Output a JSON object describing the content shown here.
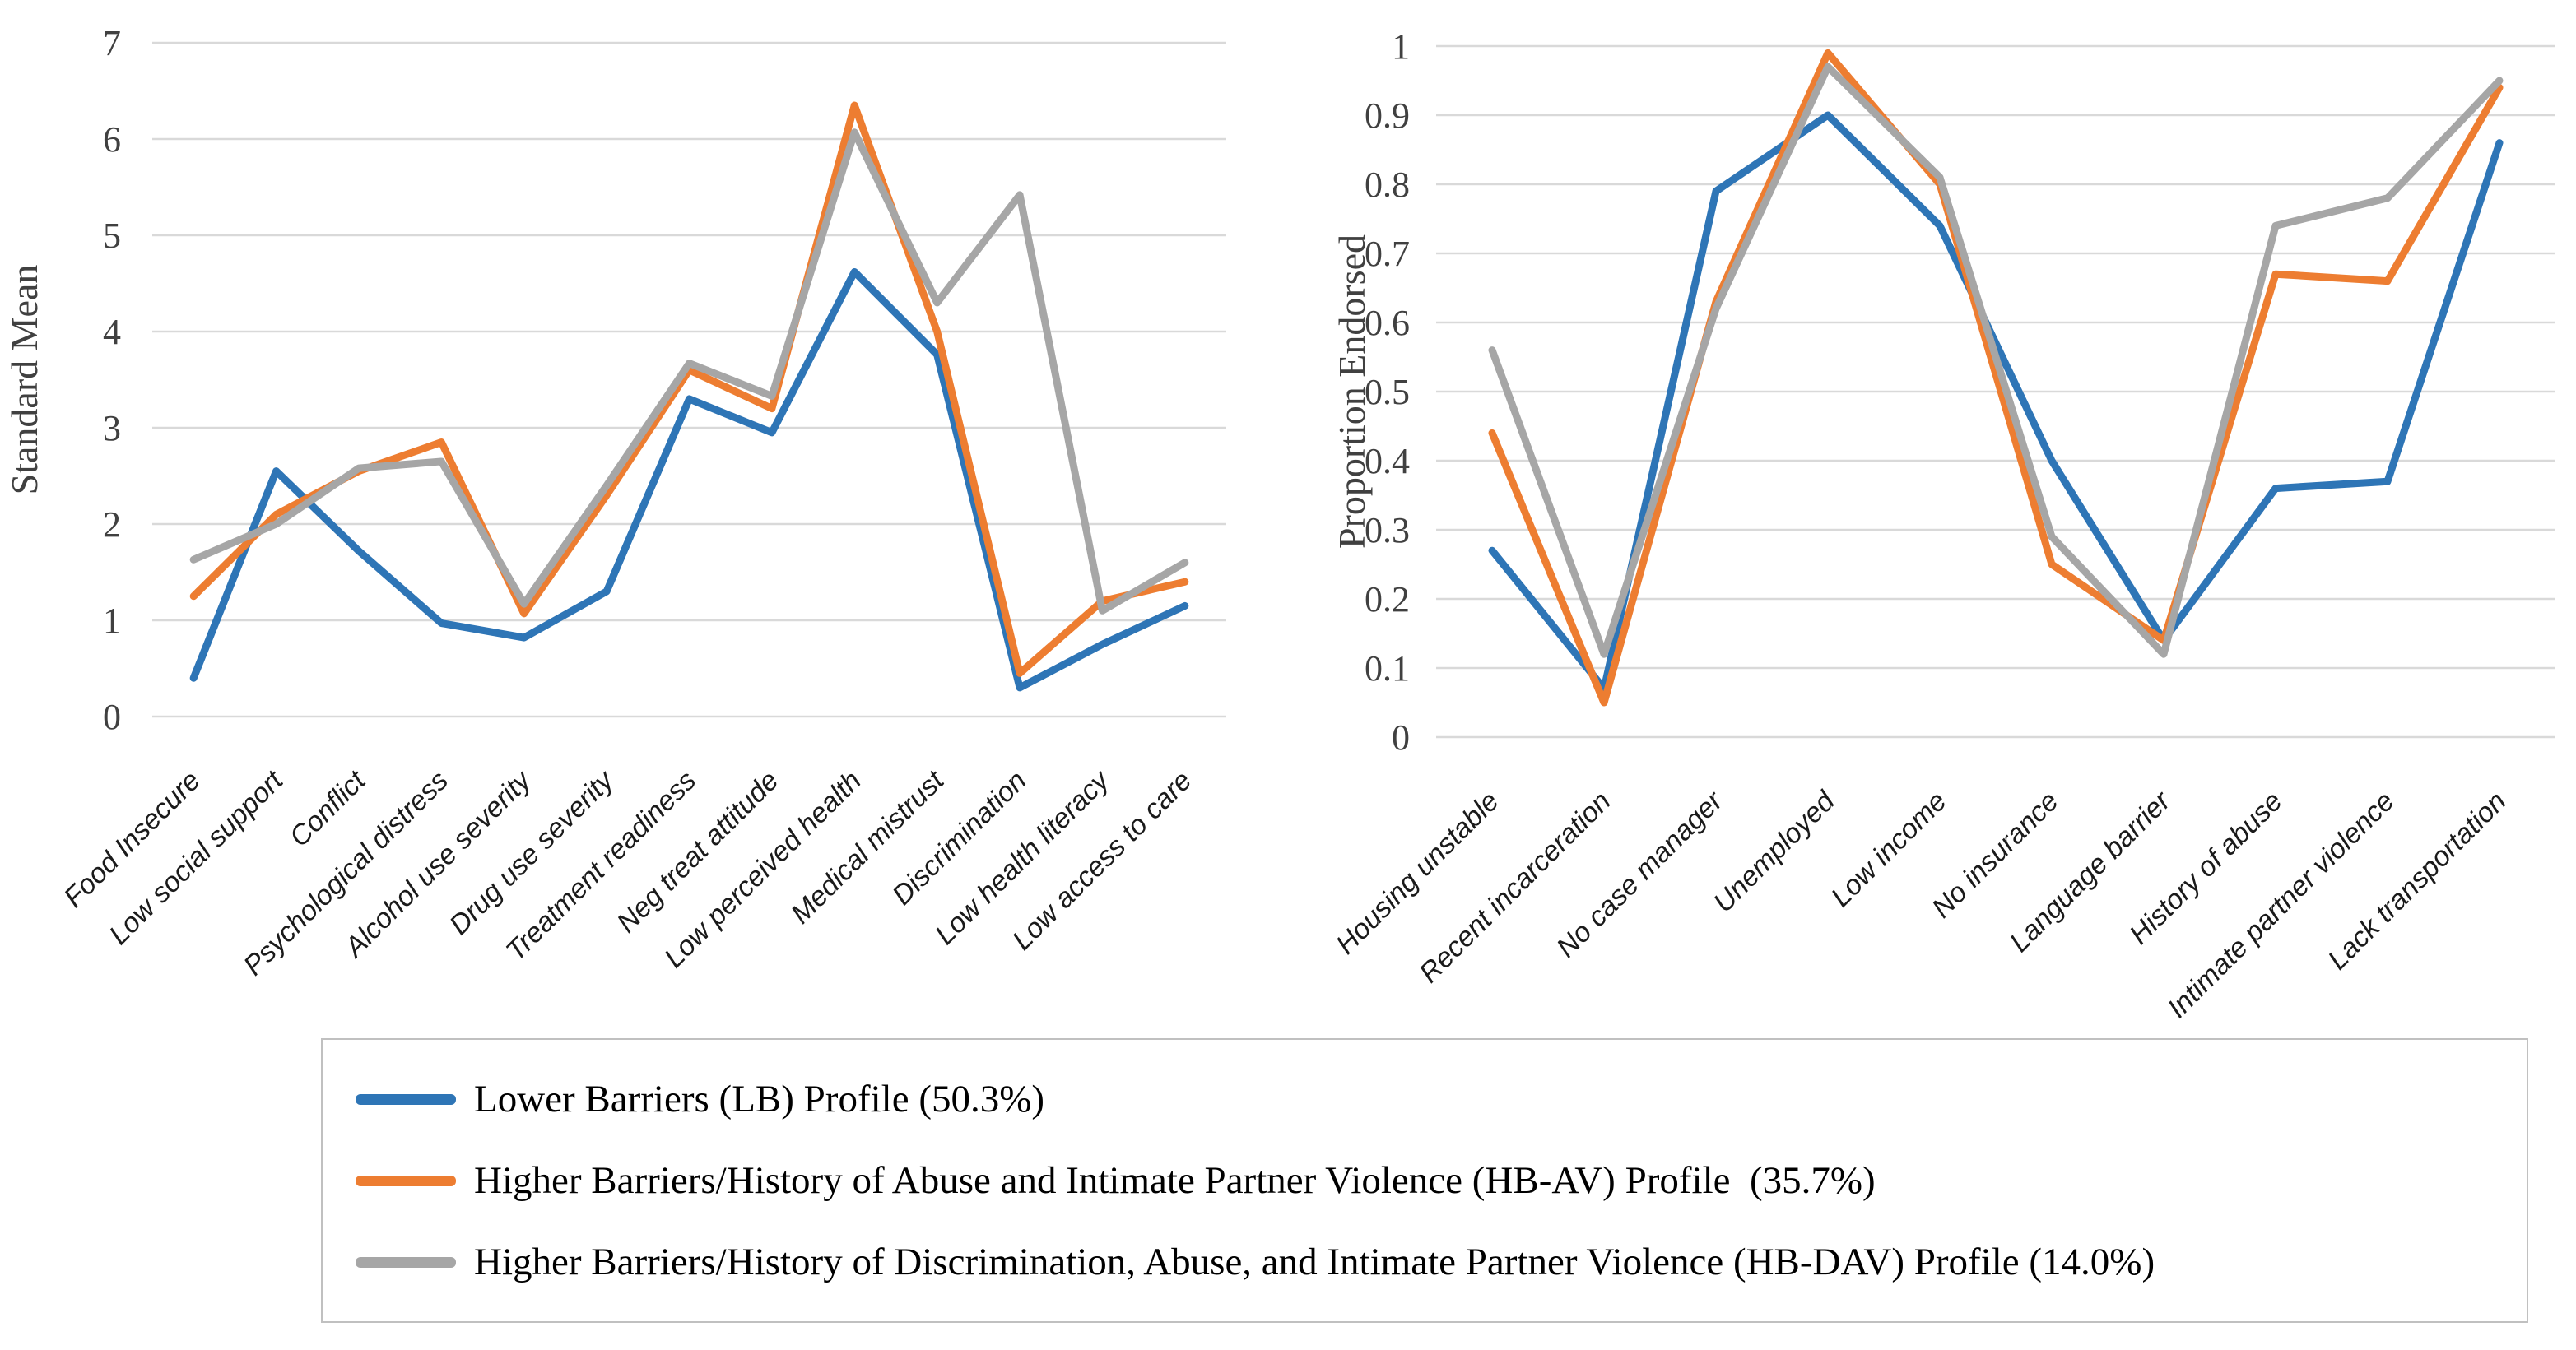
{
  "page": {
    "background": "#FFFFFF"
  },
  "colors": {
    "lb": "#2E75B6",
    "hbav": "#ED7D31",
    "hbdav": "#A6A6A6",
    "gridline": "#D9D9D9",
    "tick_label": "#404040",
    "axis_title": "#404040",
    "category_label": "#1A1A1A",
    "legend_border": "#C0C0C0"
  },
  "legend": {
    "items": [
      {
        "key": "lb",
        "label": "Lower Barriers (LB) Profile (50.3%)"
      },
      {
        "key": "hbav",
        "label": "Higher Barriers/History of Abuse and Intimate Partner Violence (HB-AV) Profile  (35.7%)"
      },
      {
        "key": "hbdav",
        "label": "Higher Barriers/History of Discrimination, Abuse, and Intimate Partner Violence (HB-DAV) Profile (14.0%)"
      }
    ]
  },
  "chart_data": [
    {
      "type": "line",
      "title": "",
      "xlabel": "",
      "ylabel": "Standard Mean",
      "ylim": [
        0,
        7
      ],
      "ytick_step": 1,
      "grid": true,
      "legend_position": "bottom-shared-box",
      "categories": [
        "Food Insecure",
        "Low social support",
        "Conflict",
        "Psychological distress",
        "Alcohol use severity",
        "Drug use severity",
        "Treatment readiness",
        "Neg treat attitude",
        "Low perceived health",
        "Medical mistrust",
        "Discrimination",
        "Low health literacy",
        "Low access to care"
      ],
      "series": [
        {
          "key": "lb",
          "name": "Lower Barriers (LB) Profile",
          "values": [
            0.4,
            2.55,
            1.72,
            0.97,
            0.82,
            1.3,
            3.3,
            2.95,
            4.62,
            3.76,
            0.3,
            0.75,
            1.15
          ]
        },
        {
          "key": "hbav",
          "name": "Higher Barriers/History of Abuse and Intimate Partner Violence (HB-AV) Profile",
          "values": [
            1.25,
            2.1,
            2.55,
            2.85,
            1.07,
            2.3,
            3.6,
            3.2,
            6.35,
            4.0,
            0.45,
            1.2,
            1.4
          ]
        },
        {
          "key": "hbdav",
          "name": "Higher Barriers/History of Discrimination, Abuse, and Intimate Partner Violence (HB-DAV) Profile",
          "values": [
            1.63,
            2.0,
            2.58,
            2.65,
            1.17,
            2.4,
            3.67,
            3.33,
            6.07,
            4.3,
            5.42,
            1.1,
            1.6
          ]
        }
      ]
    },
    {
      "type": "line",
      "title": "",
      "xlabel": "",
      "ylabel": "Proportion Endorsed",
      "ylim": [
        0,
        1
      ],
      "ytick_step": 0.1,
      "grid": true,
      "legend_position": "bottom-shared-box",
      "categories": [
        "Housing unstable",
        "Recent incarceration",
        "No case manager",
        "Unemployed",
        "Low income",
        "No insurance",
        "Language barrier",
        "History of abuse",
        "Intimate partner violence",
        "Lack transportation"
      ],
      "series": [
        {
          "key": "lb",
          "name": "Lower Barriers (LB) Profile",
          "values": [
            0.27,
            0.07,
            0.79,
            0.9,
            0.74,
            0.4,
            0.14,
            0.36,
            0.37,
            0.86
          ]
        },
        {
          "key": "hbav",
          "name": "Higher Barriers/History of Abuse and Intimate Partner Violence (HB-AV) Profile",
          "values": [
            0.44,
            0.05,
            0.63,
            0.99,
            0.8,
            0.25,
            0.14,
            0.67,
            0.66,
            0.94
          ]
        },
        {
          "key": "hbdav",
          "name": "Higher Barriers/History of Discrimination, Abuse, and Intimate Partner Violence (HB-DAV) Profile",
          "values": [
            0.56,
            0.12,
            0.62,
            0.97,
            0.81,
            0.29,
            0.12,
            0.74,
            0.78,
            0.95
          ]
        }
      ]
    }
  ]
}
